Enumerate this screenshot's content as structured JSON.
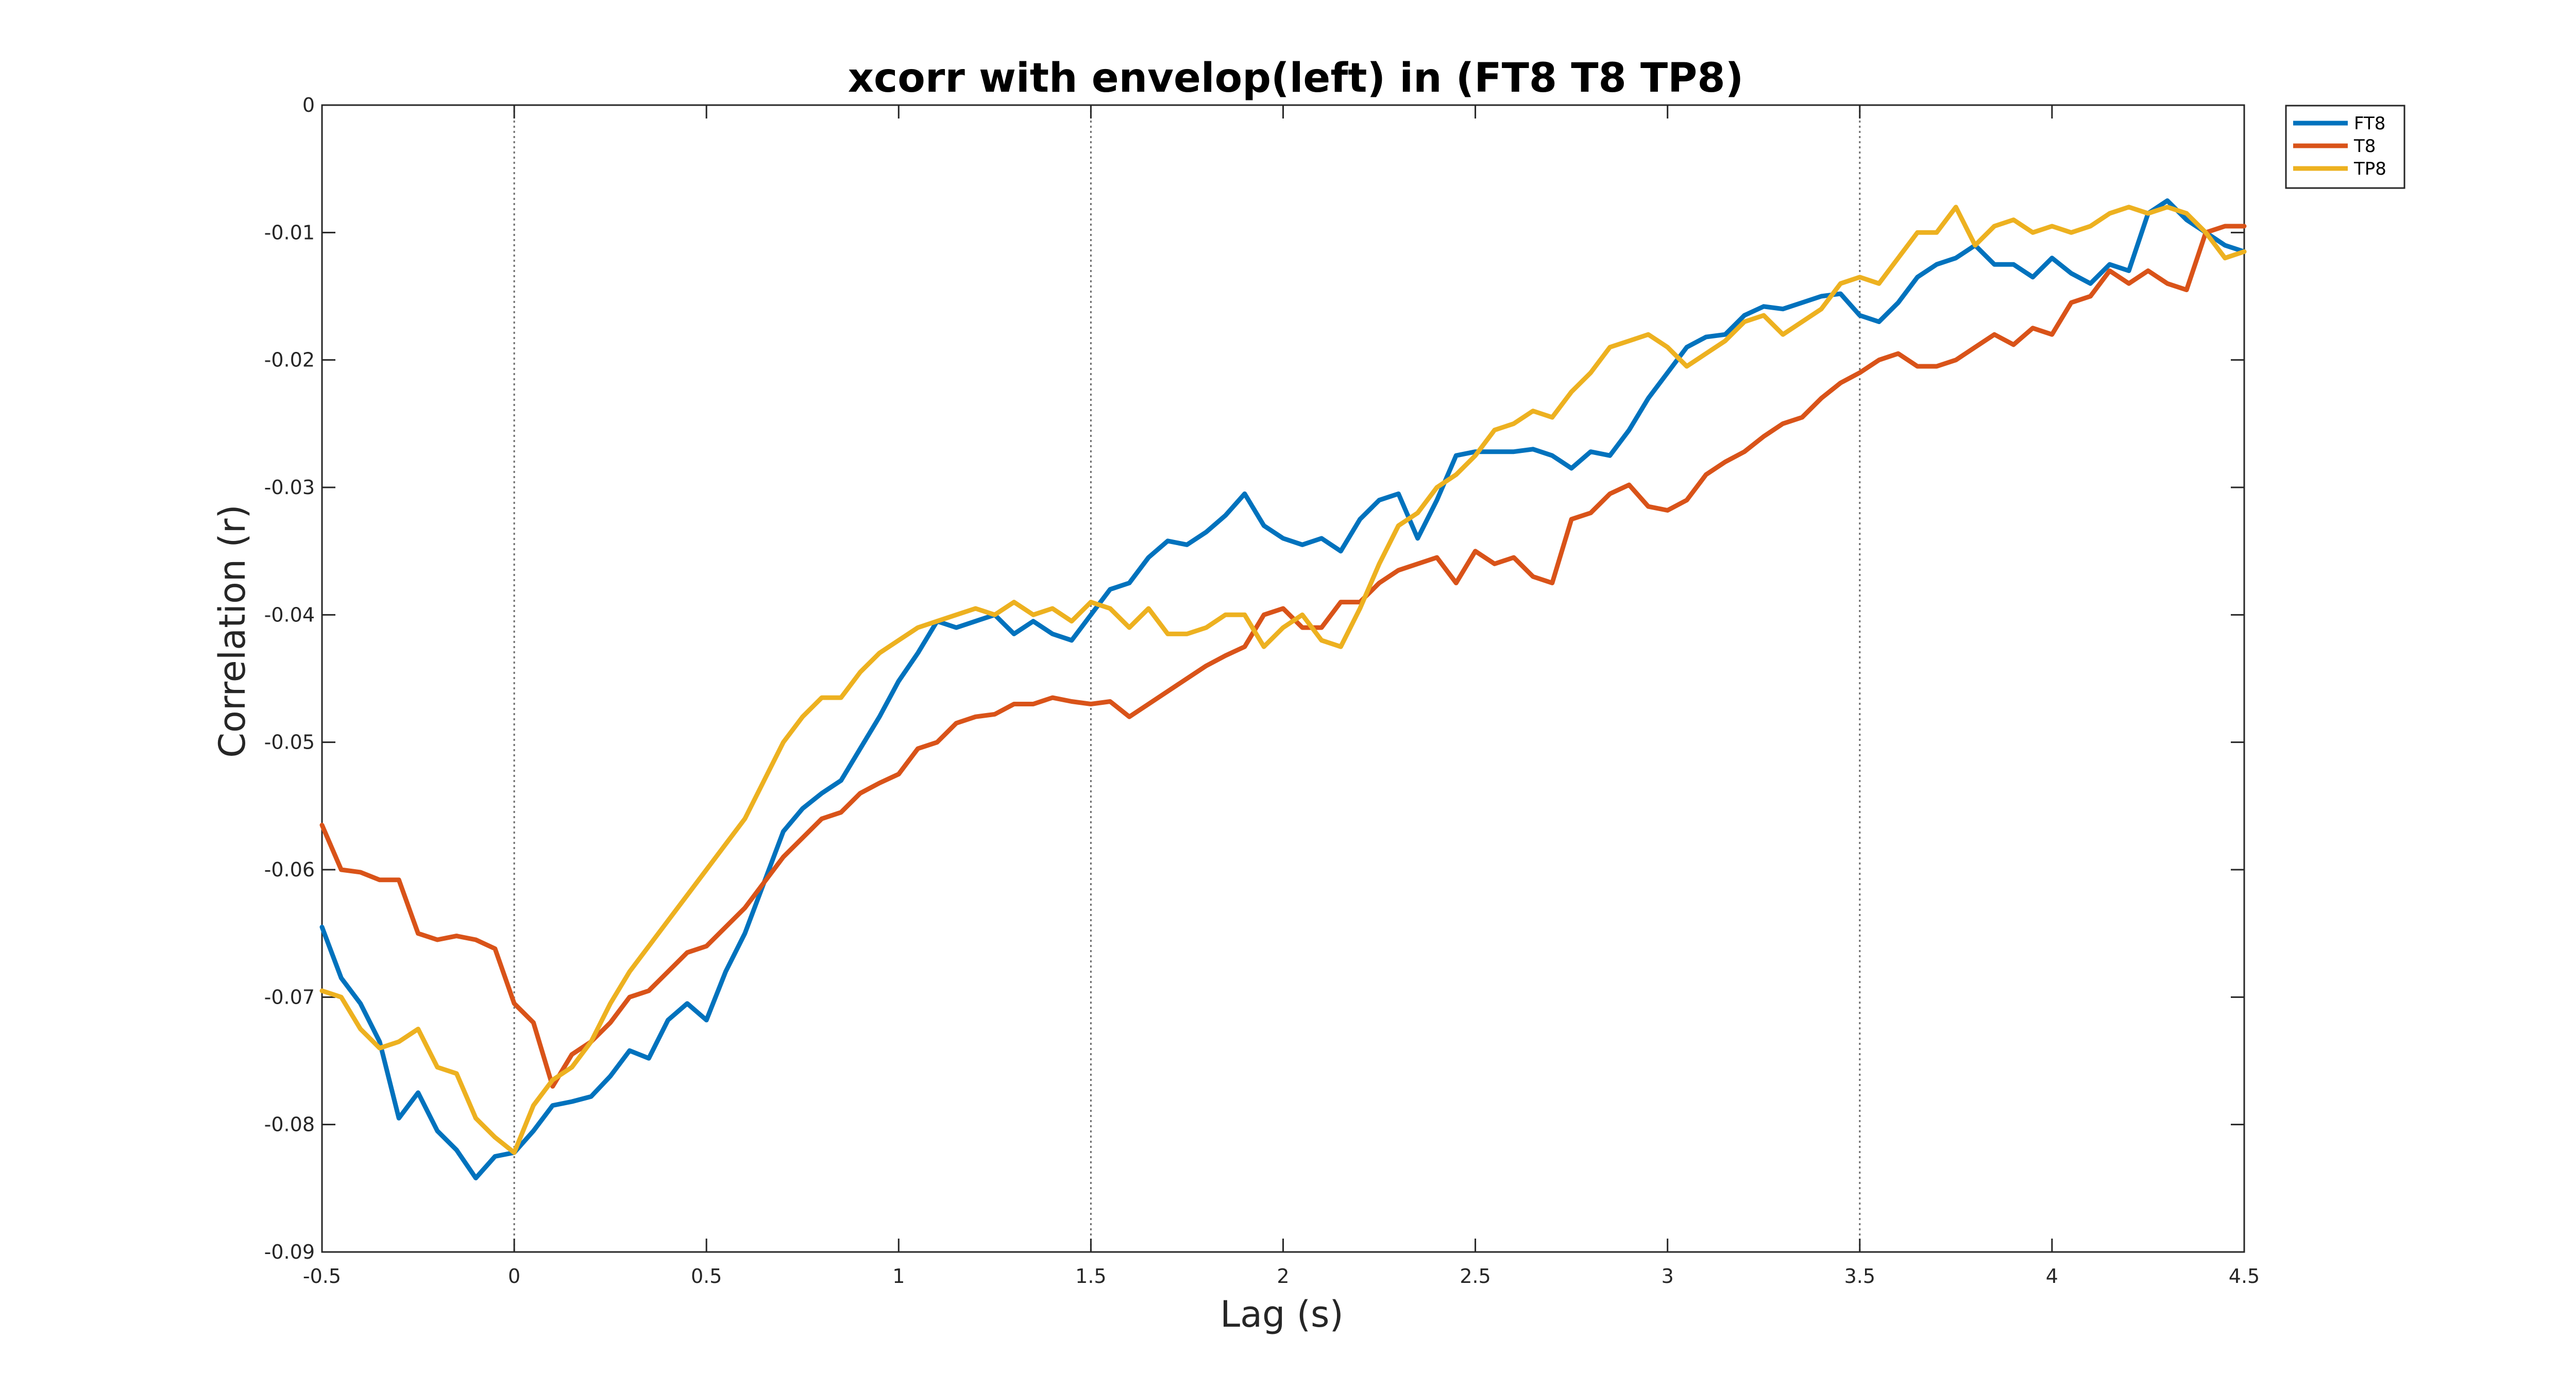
{
  "chart_data": {
    "type": "line",
    "title": "xcorr with envelop(left) in (FT8 T8 TP8)",
    "xlabel": "Lag (s)",
    "ylabel": "Correlation (r)",
    "xlim": [
      -0.5,
      4.5
    ],
    "ylim": [
      -0.09,
      0
    ],
    "xticks": [
      -0.5,
      0,
      0.5,
      1,
      1.5,
      2,
      2.5,
      3,
      3.5,
      4,
      4.5
    ],
    "xtick_labels": [
      "-0.5",
      "0",
      "0.5",
      "1",
      "1.5",
      "2",
      "2.5",
      "3",
      "3.5",
      "4",
      "4.5"
    ],
    "yticks": [
      0,
      -0.01,
      -0.02,
      -0.03,
      -0.04,
      -0.05,
      -0.06,
      -0.07,
      -0.08,
      -0.09
    ],
    "ytick_labels": [
      "0",
      "-0.01",
      "-0.02",
      "-0.03",
      "-0.04",
      "-0.05",
      "-0.06",
      "-0.07",
      "-0.08",
      "-0.09"
    ],
    "reference_lines_x": [
      0,
      1.5,
      3.5
    ],
    "grid": false,
    "legend_position": "outside-top-right",
    "series": [
      {
        "name": "FT8",
        "color": "#0072BD",
        "x": [
          -0.5,
          -0.45,
          -0.4,
          -0.35,
          -0.3,
          -0.25,
          -0.2,
          -0.15,
          -0.1,
          -0.05,
          0,
          0.05,
          0.1,
          0.15,
          0.2,
          0.25,
          0.3,
          0.35,
          0.4,
          0.45,
          0.5,
          0.55,
          0.6,
          0.65,
          0.7,
          0.75,
          0.8,
          0.85,
          0.9,
          0.95,
          1.0,
          1.05,
          1.1,
          1.15,
          1.2,
          1.25,
          1.3,
          1.35,
          1.4,
          1.45,
          1.5,
          1.55,
          1.6,
          1.65,
          1.7,
          1.75,
          1.8,
          1.85,
          1.9,
          1.95,
          2.0,
          2.05,
          2.1,
          2.15,
          2.2,
          2.25,
          2.3,
          2.35,
          2.4,
          2.45,
          2.5,
          2.55,
          2.6,
          2.65,
          2.7,
          2.75,
          2.8,
          2.85,
          2.9,
          2.95,
          3.0,
          3.05,
          3.1,
          3.15,
          3.2,
          3.25,
          3.3,
          3.35,
          3.4,
          3.45,
          3.5,
          3.55,
          3.6,
          3.65,
          3.7,
          3.75,
          3.8,
          3.85,
          3.9,
          3.95,
          4.0,
          4.05,
          4.1,
          4.15,
          4.2,
          4.25,
          4.3,
          4.35,
          4.4,
          4.45,
          4.5
        ],
        "y": [
          -0.0645,
          -0.0685,
          -0.0705,
          -0.0735,
          -0.0795,
          -0.0775,
          -0.0805,
          -0.082,
          -0.0842,
          -0.0825,
          -0.0822,
          -0.0805,
          -0.0785,
          -0.0782,
          -0.0778,
          -0.0762,
          -0.0742,
          -0.0748,
          -0.0718,
          -0.0705,
          -0.0718,
          -0.068,
          -0.065,
          -0.061,
          -0.057,
          -0.0552,
          -0.054,
          -0.053,
          -0.0505,
          -0.048,
          -0.0452,
          -0.043,
          -0.0405,
          -0.041,
          -0.0405,
          -0.04,
          -0.0415,
          -0.0405,
          -0.0415,
          -0.042,
          -0.04,
          -0.038,
          -0.0375,
          -0.0355,
          -0.0342,
          -0.0345,
          -0.0335,
          -0.0322,
          -0.0305,
          -0.033,
          -0.034,
          -0.0345,
          -0.034,
          -0.035,
          -0.0325,
          -0.031,
          -0.0305,
          -0.034,
          -0.031,
          -0.0275,
          -0.0272,
          -0.0272,
          -0.0272,
          -0.027,
          -0.0275,
          -0.0285,
          -0.0272,
          -0.0275,
          -0.0255,
          -0.023,
          -0.021,
          -0.019,
          -0.0182,
          -0.018,
          -0.0165,
          -0.0158,
          -0.016,
          -0.0155,
          -0.015,
          -0.0148,
          -0.0165,
          -0.017,
          -0.0155,
          -0.0135,
          -0.0125,
          -0.012,
          -0.011,
          -0.0125,
          -0.0125,
          -0.0135,
          -0.012,
          -0.0132,
          -0.014,
          -0.0125,
          -0.013,
          -0.0085,
          -0.0075,
          -0.009,
          -0.01,
          -0.011,
          -0.0115
        ]
      },
      {
        "name": "T8",
        "color": "#D95319",
        "x": [
          -0.5,
          -0.45,
          -0.4,
          -0.35,
          -0.3,
          -0.25,
          -0.2,
          -0.15,
          -0.1,
          -0.05,
          0,
          0.05,
          0.1,
          0.15,
          0.2,
          0.25,
          0.3,
          0.35,
          0.4,
          0.45,
          0.5,
          0.55,
          0.6,
          0.65,
          0.7,
          0.75,
          0.8,
          0.85,
          0.9,
          0.95,
          1.0,
          1.05,
          1.1,
          1.15,
          1.2,
          1.25,
          1.3,
          1.35,
          1.4,
          1.45,
          1.5,
          1.55,
          1.6,
          1.65,
          1.7,
          1.75,
          1.8,
          1.85,
          1.9,
          1.95,
          2.0,
          2.05,
          2.1,
          2.15,
          2.2,
          2.25,
          2.3,
          2.35,
          2.4,
          2.45,
          2.5,
          2.55,
          2.6,
          2.65,
          2.7,
          2.75,
          2.8,
          2.85,
          2.9,
          2.95,
          3.0,
          3.05,
          3.1,
          3.15,
          3.2,
          3.25,
          3.3,
          3.35,
          3.4,
          3.45,
          3.5,
          3.55,
          3.6,
          3.65,
          3.7,
          3.75,
          3.8,
          3.85,
          3.9,
          3.95,
          4.0,
          4.05,
          4.1,
          4.15,
          4.2,
          4.25,
          4.3,
          4.35,
          4.4,
          4.45,
          4.5
        ],
        "y": [
          -0.0565,
          -0.06,
          -0.0602,
          -0.0608,
          -0.0608,
          -0.065,
          -0.0655,
          -0.0652,
          -0.0655,
          -0.0662,
          -0.0705,
          -0.072,
          -0.077,
          -0.0745,
          -0.0735,
          -0.072,
          -0.07,
          -0.0695,
          -0.068,
          -0.0665,
          -0.066,
          -0.0645,
          -0.063,
          -0.061,
          -0.059,
          -0.0575,
          -0.056,
          -0.0555,
          -0.054,
          -0.0532,
          -0.0525,
          -0.0505,
          -0.05,
          -0.0485,
          -0.048,
          -0.0478,
          -0.047,
          -0.047,
          -0.0465,
          -0.0468,
          -0.047,
          -0.0468,
          -0.048,
          -0.047,
          -0.046,
          -0.045,
          -0.044,
          -0.0432,
          -0.0425,
          -0.04,
          -0.0395,
          -0.041,
          -0.041,
          -0.039,
          -0.039,
          -0.0375,
          -0.0365,
          -0.036,
          -0.0355,
          -0.0375,
          -0.035,
          -0.036,
          -0.0355,
          -0.037,
          -0.0375,
          -0.0325,
          -0.032,
          -0.0305,
          -0.0298,
          -0.0315,
          -0.0318,
          -0.031,
          -0.029,
          -0.028,
          -0.0272,
          -0.026,
          -0.025,
          -0.0245,
          -0.023,
          -0.0218,
          -0.021,
          -0.02,
          -0.0195,
          -0.0205,
          -0.0205,
          -0.02,
          -0.019,
          -0.018,
          -0.0188,
          -0.0175,
          -0.018,
          -0.0155,
          -0.015,
          -0.013,
          -0.014,
          -0.013,
          -0.014,
          -0.0145,
          -0.01,
          -0.0095,
          -0.0095
        ]
      },
      {
        "name": "TP8",
        "color": "#EDB120",
        "x": [
          -0.5,
          -0.45,
          -0.4,
          -0.35,
          -0.3,
          -0.25,
          -0.2,
          -0.15,
          -0.1,
          -0.05,
          0,
          0.05,
          0.1,
          0.15,
          0.2,
          0.25,
          0.3,
          0.35,
          0.4,
          0.45,
          0.5,
          0.55,
          0.6,
          0.65,
          0.7,
          0.75,
          0.8,
          0.85,
          0.9,
          0.95,
          1.0,
          1.05,
          1.1,
          1.15,
          1.2,
          1.25,
          1.3,
          1.35,
          1.4,
          1.45,
          1.5,
          1.55,
          1.6,
          1.65,
          1.7,
          1.75,
          1.8,
          1.85,
          1.9,
          1.95,
          2.0,
          2.05,
          2.1,
          2.15,
          2.2,
          2.25,
          2.3,
          2.35,
          2.4,
          2.45,
          2.5,
          2.55,
          2.6,
          2.65,
          2.7,
          2.75,
          2.8,
          2.85,
          2.9,
          2.95,
          3.0,
          3.05,
          3.1,
          3.15,
          3.2,
          3.25,
          3.3,
          3.35,
          3.4,
          3.45,
          3.5,
          3.55,
          3.6,
          3.65,
          3.7,
          3.75,
          3.8,
          3.85,
          3.9,
          3.95,
          4.0,
          4.05,
          4.1,
          4.15,
          4.2,
          4.25,
          4.3,
          4.35,
          4.4,
          4.45,
          4.5
        ],
        "y": [
          -0.0695,
          -0.07,
          -0.0725,
          -0.074,
          -0.0735,
          -0.0725,
          -0.0755,
          -0.076,
          -0.0795,
          -0.081,
          -0.0822,
          -0.0785,
          -0.0765,
          -0.0755,
          -0.0735,
          -0.0705,
          -0.068,
          -0.066,
          -0.064,
          -0.062,
          -0.06,
          -0.058,
          -0.056,
          -0.053,
          -0.05,
          -0.048,
          -0.0465,
          -0.0465,
          -0.0445,
          -0.043,
          -0.042,
          -0.041,
          -0.0405,
          -0.04,
          -0.0395,
          -0.04,
          -0.039,
          -0.04,
          -0.0395,
          -0.0405,
          -0.039,
          -0.0395,
          -0.041,
          -0.0395,
          -0.0415,
          -0.0415,
          -0.041,
          -0.04,
          -0.04,
          -0.0425,
          -0.041,
          -0.04,
          -0.042,
          -0.0425,
          -0.0395,
          -0.036,
          -0.033,
          -0.032,
          -0.03,
          -0.029,
          -0.0275,
          -0.0255,
          -0.025,
          -0.024,
          -0.0245,
          -0.0225,
          -0.021,
          -0.019,
          -0.0185,
          -0.018,
          -0.019,
          -0.0205,
          -0.0195,
          -0.0185,
          -0.017,
          -0.0165,
          -0.018,
          -0.017,
          -0.016,
          -0.014,
          -0.0135,
          -0.014,
          -0.012,
          -0.01,
          -0.01,
          -0.008,
          -0.011,
          -0.0095,
          -0.009,
          -0.01,
          -0.0095,
          -0.01,
          -0.0095,
          -0.0085,
          -0.008,
          -0.0085,
          -0.008,
          -0.0085,
          -0.01,
          -0.012,
          -0.0115
        ]
      }
    ]
  }
}
